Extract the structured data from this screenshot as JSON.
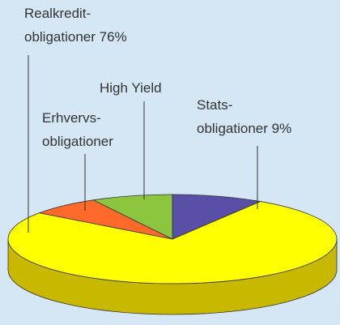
{
  "chart_data": {
    "type": "pie3d",
    "categories": [
      [
        "Stats-",
        "obligationer"
      ],
      [
        "Realkredit-",
        "obligationer"
      ],
      [
        "Erhvervs-",
        "obligationer"
      ],
      [
        "High Yield"
      ]
    ],
    "values": [
      9,
      76,
      7,
      8
    ],
    "value_labels": [
      "9%",
      "76%",
      null,
      null
    ],
    "colors": [
      "#5a4fa6",
      "#ffff00",
      "#ff6a2a",
      "#8cc63e"
    ],
    "side_colors": [
      "#3e3578",
      "#c9b800",
      "#b84a1c",
      "#5f8a2a"
    ]
  }
}
